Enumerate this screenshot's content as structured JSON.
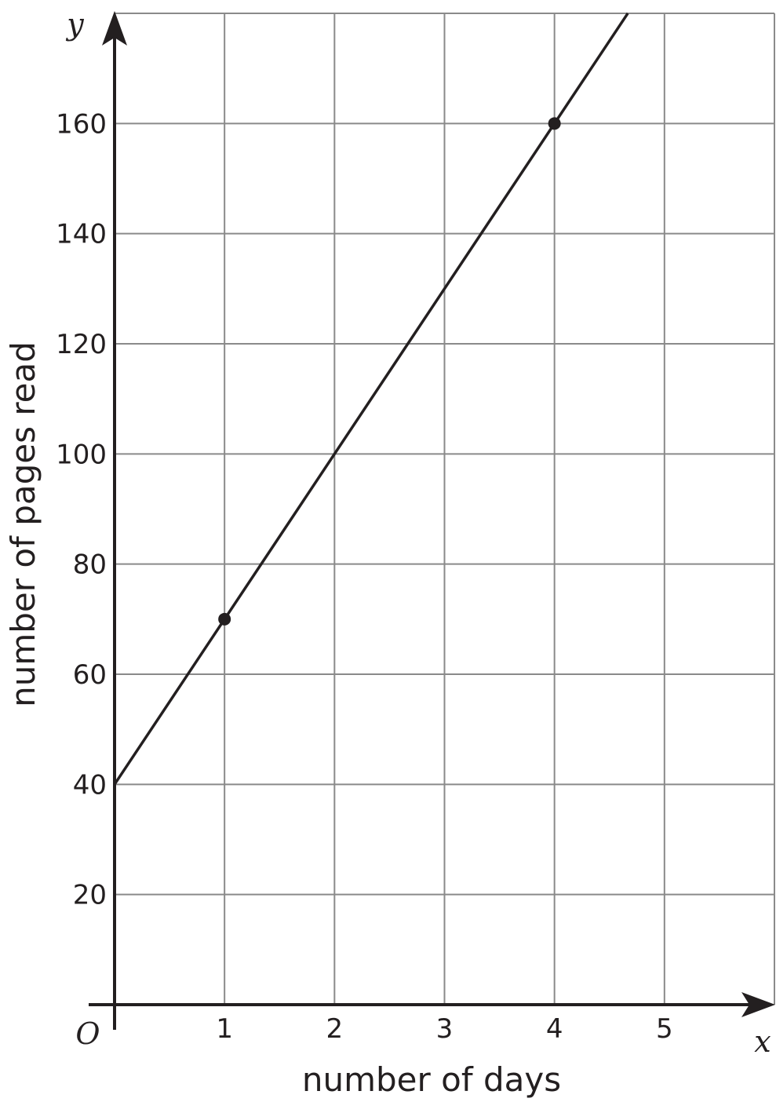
{
  "chart_data": {
    "type": "line",
    "xlabel": "number of days",
    "ylabel": "number of pages read",
    "x_var": "x",
    "y_var": "y",
    "origin_label": "O",
    "xlim": [
      0,
      6
    ],
    "ylim": [
      0,
      180
    ],
    "x_ticks": [
      1,
      2,
      3,
      4,
      5
    ],
    "y_ticks": [
      20,
      40,
      60,
      80,
      100,
      120,
      140,
      160
    ],
    "grid": true,
    "x_grid_step": 1,
    "y_grid_step": 20,
    "series": [
      {
        "line": {
          "slope": 30,
          "intercept": 40
        },
        "line_x_range": [
          0,
          4.667
        ],
        "points": [
          {
            "x": 1,
            "y": 70
          },
          {
            "x": 4,
            "y": 160
          }
        ]
      }
    ],
    "colors": {
      "ink": "#231f20",
      "grid": "#8a8a8a"
    }
  }
}
